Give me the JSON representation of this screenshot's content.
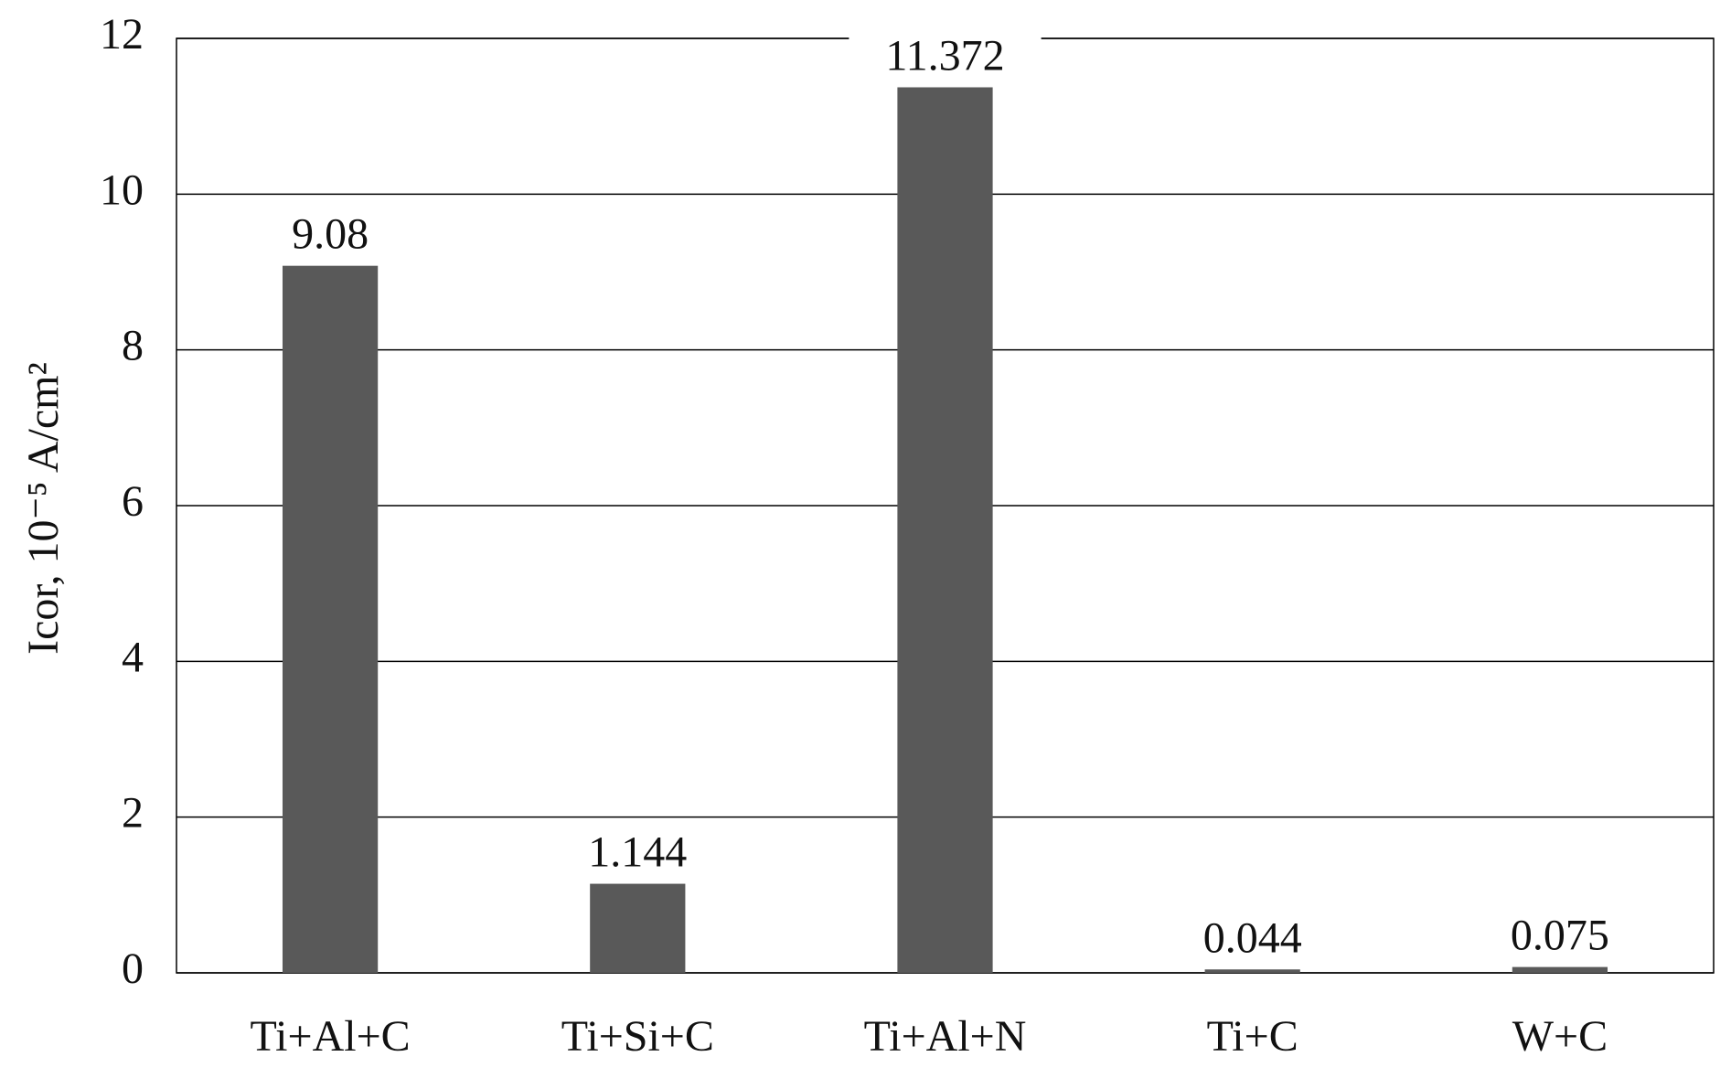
{
  "chart_data": {
    "type": "bar",
    "y_label": "Icor, 10⁻⁵ A/cm²",
    "categories": [
      "Ti+Al+C",
      "Ti+Si+C",
      "Ti+Al+N",
      "Ti+C",
      "W+C"
    ],
    "values": [
      9.08,
      1.144,
      11.372,
      0.044,
      0.075
    ],
    "color": "#595959",
    "ylim": [
      0,
      12
    ],
    "yticks": [
      0,
      2,
      4,
      6,
      8,
      10,
      12
    ],
    "grid": true
  }
}
